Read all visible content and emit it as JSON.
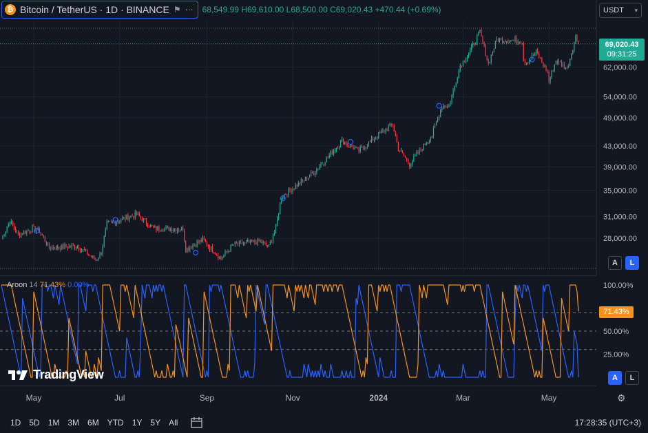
{
  "legend": {
    "symbol": "Bitcoin / TetherUS · 1D · BINANCE",
    "ohlc_text": "68,549.99 H69,610.00 L68,500.00 C69,020.43",
    "change": "+470.44 (+0.69%)"
  },
  "currency": "USDT",
  "price_badge": {
    "price": "69,020.43",
    "countdown": "09:31:25"
  },
  "scale_buttons": {
    "auto": "A",
    "log": "L"
  },
  "aroon": {
    "name": "Aroon",
    "length": "14",
    "up_value": "71.43%",
    "down_value": "0.00%",
    "badge": "71.43%",
    "up_color": "#f7931a",
    "down_color": "#2962ff"
  },
  "watermark": "TradingView",
  "time_axis": [
    "May",
    "Jul",
    "Sep",
    "Nov",
    "2024",
    "Mar",
    "May"
  ],
  "bottom_bar": {
    "ranges": [
      "1D",
      "5D",
      "1M",
      "3M",
      "6M",
      "YTD",
      "1Y",
      "5Y",
      "All"
    ],
    "time": "17:28:35 (UTC+3)"
  },
  "colors": {
    "up": "#22ab94",
    "down": "#f23645",
    "background": "#131722",
    "grid": "#1e222d"
  },
  "chart_data": [
    {
      "type": "candlestick",
      "title": "Bitcoin / TetherUS · 1D · BINANCE",
      "scale": "log",
      "y_ticks": [
        28000,
        31000,
        35000,
        39000,
        43000,
        49000,
        54000,
        62000
      ],
      "y_tick_labels": [
        "28,000.00",
        "31,000.00",
        "35,000.00",
        "39,000.00",
        "43,000.00",
        "49,000.00",
        "54,000.00",
        "62,000.00"
      ],
      "last_price": 69020.43,
      "date_range": [
        "2023-04-08",
        "2024-05-22"
      ],
      "anchors": [
        [
          "2023-04-08",
          28000
        ],
        [
          "2023-04-14",
          30300
        ],
        [
          "2023-04-20",
          28500
        ],
        [
          "2023-04-30",
          29300
        ],
        [
          "2023-05-05",
          29000
        ],
        [
          "2023-05-12",
          26800
        ],
        [
          "2023-06-01",
          27000
        ],
        [
          "2023-06-14",
          25300
        ],
        [
          "2023-06-18",
          26300
        ],
        [
          "2023-06-22",
          29900
        ],
        [
          "2023-07-13",
          31300
        ],
        [
          "2023-07-25",
          29300
        ],
        [
          "2023-08-15",
          29300
        ],
        [
          "2023-08-17",
          26600
        ],
        [
          "2023-08-29",
          27800
        ],
        [
          "2023-09-11",
          25500
        ],
        [
          "2023-09-20",
          27200
        ],
        [
          "2023-10-09",
          27600
        ],
        [
          "2023-10-15",
          26900
        ],
        [
          "2023-10-20",
          29500
        ],
        [
          "2023-10-24",
          34000
        ],
        [
          "2023-11-15",
          37800
        ],
        [
          "2023-12-06",
          44000
        ],
        [
          "2023-12-18",
          42000
        ],
        [
          "2024-01-02",
          45500
        ],
        [
          "2024-01-11",
          47500
        ],
        [
          "2024-01-15",
          42500
        ],
        [
          "2024-01-23",
          39500
        ],
        [
          "2024-02-08",
          45200
        ],
        [
          "2024-02-15",
          51800
        ],
        [
          "2024-02-20",
          51700
        ],
        [
          "2024-02-28",
          62500
        ],
        [
          "2024-03-05",
          66000
        ],
        [
          "2024-03-13",
          73000
        ],
        [
          "2024-03-19",
          63000
        ],
        [
          "2024-03-25",
          70500
        ],
        [
          "2024-04-12",
          70000
        ],
        [
          "2024-04-13",
          64000
        ],
        [
          "2024-04-16",
          63500
        ],
        [
          "2024-04-22",
          66500
        ],
        [
          "2024-04-30",
          60500
        ],
        [
          "2024-05-01",
          58000
        ],
        [
          "2024-05-06",
          64000
        ],
        [
          "2024-05-14",
          61500
        ],
        [
          "2024-05-20",
          71400
        ],
        [
          "2024-05-22",
          69020
        ]
      ]
    },
    {
      "type": "line",
      "title": "Aroon 14",
      "ylim": [
        0,
        100
      ],
      "y_tick_labels": [
        "100.00%",
        "50.00%",
        "25.00%"
      ],
      "series": [
        {
          "name": "Aroon Up",
          "last": 71.43
        },
        {
          "name": "Aroon Down",
          "last": 0
        }
      ]
    }
  ]
}
